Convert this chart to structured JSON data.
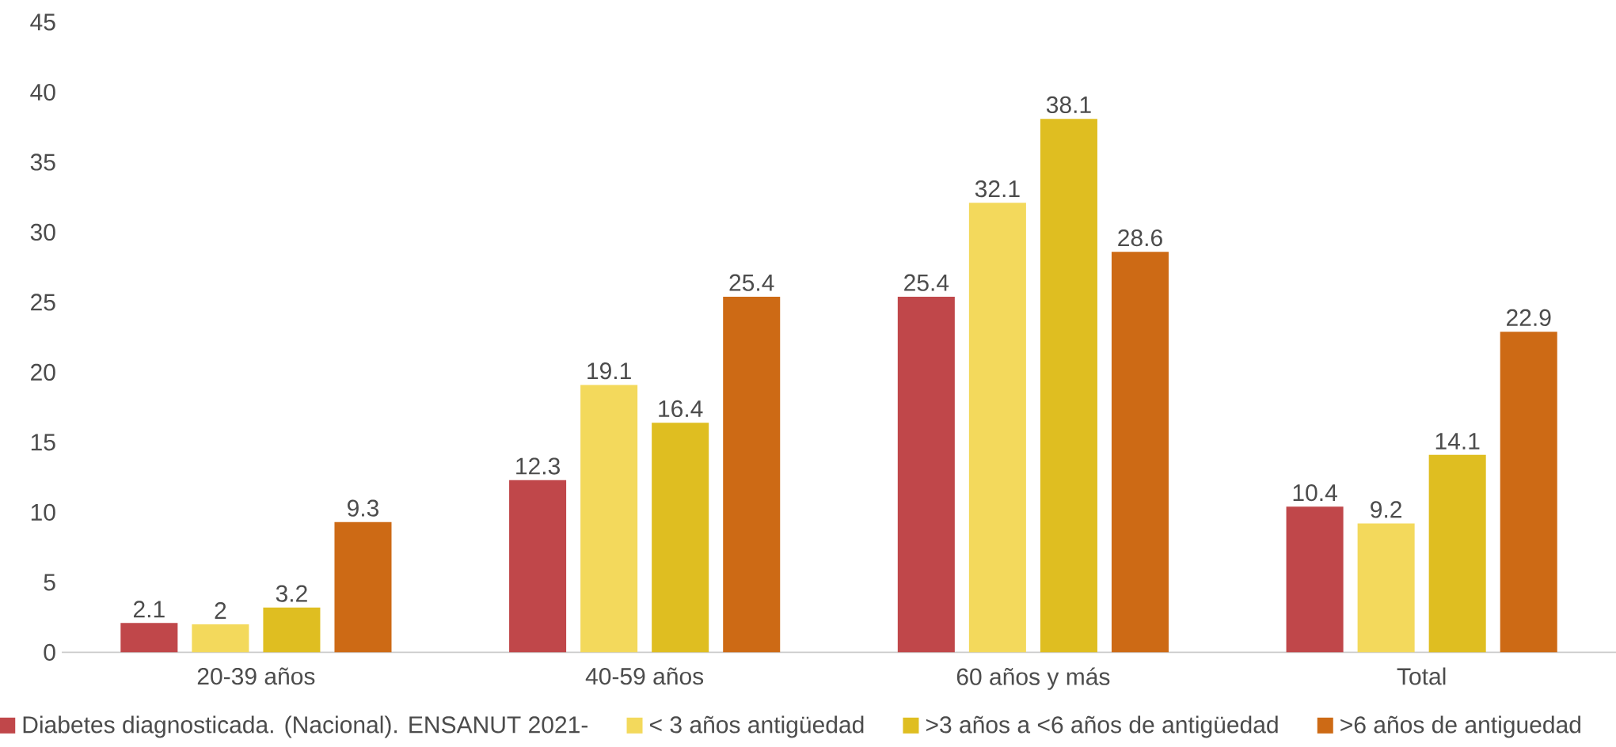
{
  "chart_data": {
    "type": "bar",
    "categories": [
      "20-39 años",
      "40-59 años",
      "60 años y más",
      "Total"
    ],
    "series": [
      {
        "name": "Diabetes diagnosticada. (Nacional). ENSANUT 2021-",
        "color": "#c0474a",
        "values": [
          2.1,
          12.3,
          25.4,
          10.4
        ]
      },
      {
        "name": "< 3 años antigüedad",
        "color": "#f3d95c",
        "values": [
          2,
          19.1,
          32.1,
          9.2
        ]
      },
      {
        "name": ">3 años a <6 años de antigüedad",
        "color": "#dfbe21",
        "values": [
          3.2,
          16.4,
          38.1,
          14.1
        ]
      },
      {
        "name": ">6 años de antiguedad",
        "color": "#cd6a15",
        "values": [
          9.3,
          25.4,
          28.6,
          22.9
        ]
      }
    ],
    "ylim": [
      0,
      45
    ],
    "yticks": [
      0,
      5,
      10,
      15,
      20,
      25,
      30,
      35,
      40,
      45
    ],
    "grid": false,
    "legend": "bottom",
    "data_labels": true
  }
}
